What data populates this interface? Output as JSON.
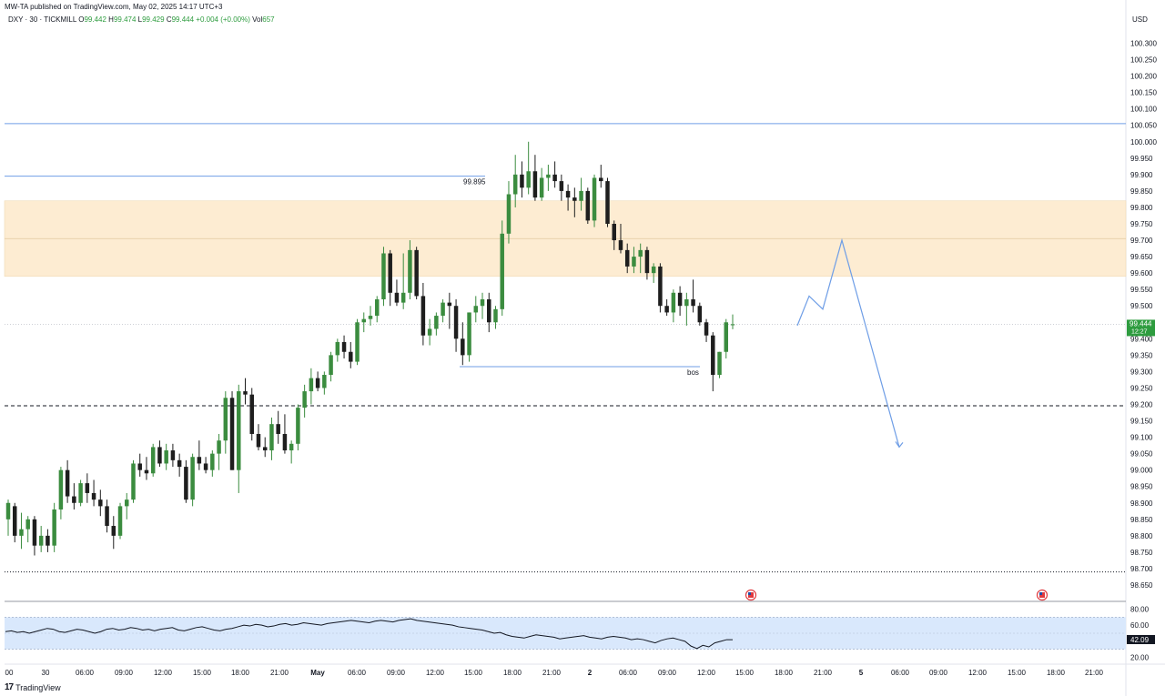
{
  "header": {
    "published": "MW-TA published on TradingView.com, May 02, 2025 14:17 UTC+3",
    "currency": "USD"
  },
  "legend": {
    "symbol": "DXY · 30 · TICKMILL",
    "o_label": "O",
    "o": "99.442",
    "h_label": "H",
    "h": "99.474",
    "l_label": "L",
    "l": "99.429",
    "c_label": "C",
    "c": "99.444",
    "chg": "+0.004 (+0.00%)",
    "vol_label": "Vol",
    "vol": "657"
  },
  "footer": {
    "brand": "TradingView",
    "logo": "17"
  },
  "colors": {
    "up": "#3b8c3f",
    "down": "#1e1e1e",
    "zone": "#fdecd2",
    "line": "#6f9ee6",
    "rsi_band": "#d9e8fc",
    "price_badge": "#2e9c3f"
  },
  "chart_data": {
    "type": "candlestick",
    "price_axis": {
      "ylim": [
        98.63,
        100.36
      ],
      "ticks": [
        "100.300",
        "100.250",
        "100.200",
        "100.150",
        "100.100",
        "100.050",
        "100.000",
        "99.950",
        "99.900",
        "99.850",
        "99.800",
        "99.750",
        "99.700",
        "99.650",
        "99.600",
        "99.550",
        "99.500",
        "99.450",
        "99.400",
        "99.350",
        "99.300",
        "99.250",
        "99.200",
        "99.150",
        "99.100",
        "99.050",
        "99.000",
        "98.950",
        "98.900",
        "98.850",
        "98.800",
        "98.750",
        "98.700",
        "98.650"
      ]
    },
    "x_ticks": [
      "00",
      "30",
      "06:00",
      "09:00",
      "12:00",
      "15:00",
      "18:00",
      "21:00",
      "May",
      "06:00",
      "09:00",
      "12:00",
      "15:00",
      "18:00",
      "21:00",
      "2",
      "06:00",
      "09:00",
      "12:00",
      "15:00",
      "18:00",
      "21:00",
      "5",
      "06:00",
      "09:00",
      "12:00",
      "15:00",
      "18:00",
      "21:00"
    ],
    "candles": [
      [
        98.85,
        98.91,
        98.8,
        98.9
      ],
      [
        98.89,
        98.9,
        98.78,
        98.8
      ],
      [
        98.8,
        98.87,
        98.76,
        98.82
      ],
      [
        98.82,
        98.86,
        98.78,
        98.85
      ],
      [
        98.85,
        98.86,
        98.74,
        98.77
      ],
      [
        98.77,
        98.83,
        98.75,
        98.8
      ],
      [
        98.8,
        98.82,
        98.75,
        98.77
      ],
      [
        98.77,
        98.9,
        98.75,
        98.88
      ],
      [
        98.88,
        99.01,
        98.85,
        99.0
      ],
      [
        99.0,
        99.03,
        98.9,
        98.92
      ],
      [
        98.92,
        98.96,
        98.88,
        98.9
      ],
      [
        98.9,
        98.97,
        98.89,
        98.96
      ],
      [
        98.96,
        98.99,
        98.9,
        98.93
      ],
      [
        98.93,
        98.97,
        98.89,
        98.91
      ],
      [
        98.91,
        98.94,
        98.86,
        98.89
      ],
      [
        98.89,
        98.91,
        98.81,
        98.83
      ],
      [
        98.83,
        98.86,
        98.76,
        98.8
      ],
      [
        98.8,
        98.9,
        98.79,
        98.89
      ],
      [
        98.89,
        98.93,
        98.85,
        98.91
      ],
      [
        98.91,
        99.03,
        98.9,
        99.02
      ],
      [
        99.02,
        99.05,
        98.98,
        99.0
      ],
      [
        99.0,
        99.04,
        98.97,
        98.99
      ],
      [
        98.99,
        99.08,
        98.98,
        99.07
      ],
      [
        99.07,
        99.09,
        99.01,
        99.02
      ],
      [
        99.02,
        99.08,
        99.0,
        99.06
      ],
      [
        99.06,
        99.08,
        99.01,
        99.03
      ],
      [
        99.03,
        99.05,
        98.98,
        99.01
      ],
      [
        99.01,
        99.03,
        98.9,
        98.91
      ],
      [
        98.91,
        99.05,
        98.89,
        99.04
      ],
      [
        99.04,
        99.09,
        99.0,
        99.02
      ],
      [
        99.02,
        99.04,
        98.99,
        99.0
      ],
      [
        99.0,
        99.06,
        98.98,
        99.05
      ],
      [
        99.05,
        99.11,
        99.0,
        99.09
      ],
      [
        99.09,
        99.24,
        99.05,
        99.22
      ],
      [
        99.22,
        99.24,
        99.0,
        99.0
      ],
      [
        99.0,
        99.26,
        98.93,
        99.24
      ],
      [
        99.24,
        99.28,
        99.2,
        99.23
      ],
      [
        99.23,
        99.25,
        99.09,
        99.11
      ],
      [
        99.11,
        99.14,
        99.06,
        99.07
      ],
      [
        99.07,
        99.1,
        99.04,
        99.06
      ],
      [
        99.06,
        99.16,
        99.03,
        99.14
      ],
      [
        99.14,
        99.18,
        99.08,
        99.11
      ],
      [
        99.11,
        99.17,
        99.05,
        99.06
      ],
      [
        99.06,
        99.09,
        99.02,
        99.08
      ],
      [
        99.08,
        99.2,
        99.06,
        99.19
      ],
      [
        99.19,
        99.26,
        99.16,
        99.24
      ],
      [
        99.24,
        99.31,
        99.2,
        99.28
      ],
      [
        99.28,
        99.3,
        99.24,
        99.25
      ],
      [
        99.25,
        99.3,
        99.23,
        99.29
      ],
      [
        99.29,
        99.36,
        99.27,
        99.35
      ],
      [
        99.35,
        99.4,
        99.33,
        99.39
      ],
      [
        99.39,
        99.41,
        99.34,
        99.36
      ],
      [
        99.36,
        99.39,
        99.31,
        99.33
      ],
      [
        99.33,
        99.46,
        99.32,
        99.45
      ],
      [
        99.45,
        99.48,
        99.42,
        99.46
      ],
      [
        99.46,
        99.5,
        99.44,
        99.47
      ],
      [
        99.47,
        99.53,
        99.45,
        99.52
      ],
      [
        99.52,
        99.68,
        99.5,
        99.66
      ],
      [
        99.66,
        99.67,
        99.5,
        99.54
      ],
      [
        99.54,
        99.58,
        99.5,
        99.51
      ],
      [
        99.51,
        99.66,
        99.49,
        99.54
      ],
      [
        99.54,
        99.7,
        99.52,
        99.67
      ],
      [
        99.67,
        99.68,
        99.52,
        99.53
      ],
      [
        99.53,
        99.57,
        99.38,
        99.41
      ],
      [
        99.41,
        99.46,
        99.38,
        99.43
      ],
      [
        99.43,
        99.48,
        99.41,
        99.47
      ],
      [
        99.47,
        99.52,
        99.45,
        99.51
      ],
      [
        99.51,
        99.54,
        99.43,
        99.5
      ],
      [
        99.5,
        99.52,
        99.36,
        99.4
      ],
      [
        99.4,
        99.45,
        99.32,
        99.35
      ],
      [
        99.35,
        99.48,
        99.33,
        99.48
      ],
      [
        99.48,
        99.53,
        99.45,
        99.5
      ],
      [
        99.5,
        99.54,
        99.46,
        99.52
      ],
      [
        99.52,
        99.54,
        99.42,
        99.45
      ],
      [
        99.45,
        99.5,
        99.43,
        99.49
      ],
      [
        99.49,
        99.76,
        99.47,
        99.72
      ],
      [
        99.72,
        99.88,
        99.69,
        99.84
      ],
      [
        99.84,
        99.96,
        99.8,
        99.9
      ],
      [
        99.9,
        99.94,
        99.83,
        99.86
      ],
      [
        99.86,
        100.0,
        99.84,
        99.91
      ],
      [
        99.91,
        99.96,
        99.82,
        99.83
      ],
      [
        99.83,
        99.92,
        99.82,
        99.89
      ],
      [
        99.89,
        99.93,
        99.85,
        99.9
      ],
      [
        99.9,
        99.94,
        99.86,
        99.88
      ],
      [
        99.88,
        99.9,
        99.82,
        99.85
      ],
      [
        99.85,
        99.87,
        99.79,
        99.83
      ],
      [
        99.83,
        99.86,
        99.77,
        99.82
      ],
      [
        99.82,
        99.89,
        99.79,
        99.85
      ],
      [
        99.85,
        99.86,
        99.75,
        99.76
      ],
      [
        99.76,
        99.9,
        99.74,
        99.89
      ],
      [
        99.89,
        99.93,
        99.86,
        99.88
      ],
      [
        99.88,
        99.89,
        99.74,
        99.75
      ],
      [
        99.75,
        99.76,
        99.67,
        99.7
      ],
      [
        99.7,
        99.75,
        99.66,
        99.67
      ],
      [
        99.67,
        99.69,
        99.6,
        99.62
      ],
      [
        99.62,
        99.68,
        99.6,
        99.65
      ],
      [
        99.65,
        99.69,
        99.6,
        99.67
      ],
      [
        99.67,
        99.68,
        99.58,
        99.6
      ],
      [
        99.6,
        99.63,
        99.57,
        99.62
      ],
      [
        99.62,
        99.63,
        99.48,
        99.5
      ],
      [
        99.5,
        99.52,
        99.47,
        99.48
      ],
      [
        99.48,
        99.55,
        99.45,
        99.54
      ],
      [
        99.54,
        99.56,
        99.47,
        99.5
      ],
      [
        99.5,
        99.54,
        99.44,
        99.52
      ],
      [
        99.52,
        99.58,
        99.48,
        99.5
      ],
      [
        99.5,
        99.51,
        99.44,
        99.45
      ],
      [
        99.45,
        99.46,
        99.39,
        99.41
      ],
      [
        99.41,
        99.42,
        99.24,
        99.29
      ],
      [
        99.29,
        99.36,
        99.28,
        99.36
      ],
      [
        99.36,
        99.46,
        99.34,
        99.45
      ],
      [
        99.442,
        99.474,
        99.429,
        99.444
      ]
    ],
    "rsi": {
      "current": "42.09",
      "ticks": [
        "80.00",
        "60.00",
        "40.00",
        "20.00"
      ],
      "band": [
        30,
        70
      ],
      "values": [
        52,
        53,
        51,
        52,
        50,
        52,
        54,
        56,
        55,
        52,
        51,
        53,
        55,
        54,
        52,
        50,
        52,
        55,
        56,
        54,
        55,
        57,
        56,
        54,
        55,
        53,
        55,
        56,
        57,
        54,
        53,
        55,
        57,
        58,
        56,
        54,
        53,
        55,
        56,
        58,
        60,
        59,
        61,
        60,
        58,
        59,
        61,
        62,
        60,
        61,
        63,
        62,
        61,
        60,
        62,
        63,
        64,
        65,
        66,
        65,
        64,
        63,
        65,
        66,
        65,
        64,
        66,
        67,
        68,
        66,
        65,
        64,
        63,
        62,
        61,
        60,
        58,
        57,
        56,
        55,
        54,
        52,
        50,
        51,
        48,
        46,
        45,
        44,
        46,
        48,
        47,
        46,
        45,
        43,
        44,
        45,
        46,
        47,
        45,
        44,
        43,
        45,
        46,
        45,
        44,
        42,
        43,
        42,
        40,
        38,
        41,
        43,
        44,
        42,
        40,
        34,
        31,
        35,
        33,
        38,
        40,
        42,
        42
      ]
    },
    "annotations": {
      "level_label": "99.895",
      "bos_label": "bos",
      "current_price": "99.444",
      "countdown": "12:27"
    }
  }
}
